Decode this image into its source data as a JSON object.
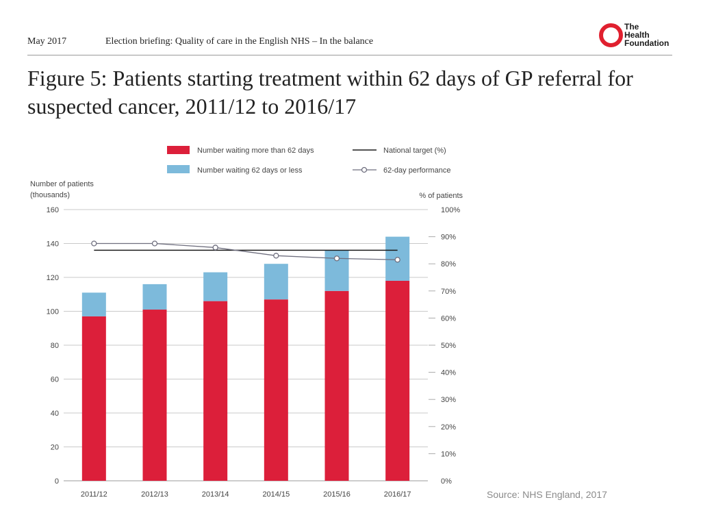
{
  "header": {
    "date": "May 2017",
    "briefing": "Election briefing: Quality of care in the English NHS – In the balance",
    "logo_lines": [
      "The",
      "Health",
      "Foundation"
    ]
  },
  "title": "Figure 5: Patients starting treatment within 62 days of GP referral for suspected cancer, 2011/12 to 2016/17",
  "source": "Source: NHS England, 2017",
  "colors": {
    "over62": "#dc1f3a",
    "within62": "#7dbadb",
    "target": "#1a1a1a",
    "performance": "#6e6e7e",
    "brand": "#e0202f"
  },
  "chart_data": {
    "type": "bar",
    "stacked": true,
    "categories": [
      "2011/12",
      "2012/13",
      "2013/14",
      "2014/15",
      "2015/16",
      "2016/17"
    ],
    "series": [
      {
        "name": "Number waiting more than 62 days",
        "values": [
          97,
          101,
          106,
          107,
          112,
          118
        ]
      },
      {
        "name": "Number waiting 62 days or less",
        "values": [
          14,
          15,
          17,
          21,
          24,
          26
        ]
      }
    ],
    "lines": [
      {
        "name": "National target (%)",
        "axis": "right",
        "values": [
          85,
          85,
          85,
          85,
          85,
          85
        ],
        "markers": false
      },
      {
        "name": "62-day performance",
        "axis": "right",
        "values": [
          87.5,
          87.5,
          86,
          83,
          82,
          81.5
        ],
        "markers": true
      }
    ],
    "ylabel": "Number of patients (thousands)",
    "ylabel_lines": [
      "Number of patients",
      "(thousands)"
    ],
    "y2label": "% of patients",
    "ylim": [
      0,
      160
    ],
    "y_ticks": [
      0,
      20,
      40,
      60,
      80,
      100,
      120,
      140,
      160
    ],
    "y2lim": [
      0,
      100
    ],
    "y2_ticks": [
      "0%",
      "10%",
      "20%",
      "30%",
      "40%",
      "50%",
      "60%",
      "70%",
      "80%",
      "90%",
      "100%"
    ],
    "legend_position": "top",
    "grid": true
  }
}
